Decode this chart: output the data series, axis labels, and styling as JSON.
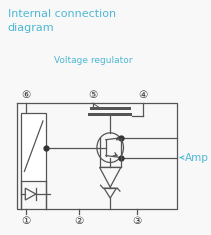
{
  "title_line1": "Internal connection",
  "title_line2": "diagram",
  "title_color": "#4db8d4",
  "label_voltage_regulator": "Voltage regulator",
  "label_amp": "Amp",
  "label_amp_color": "#4db8d4",
  "pins": [
    "①",
    "②",
    "③",
    "④",
    "⑤",
    "⑥"
  ],
  "line_color": "#555555",
  "fig_bg": "#f8f8f8",
  "white": "#ffffff"
}
